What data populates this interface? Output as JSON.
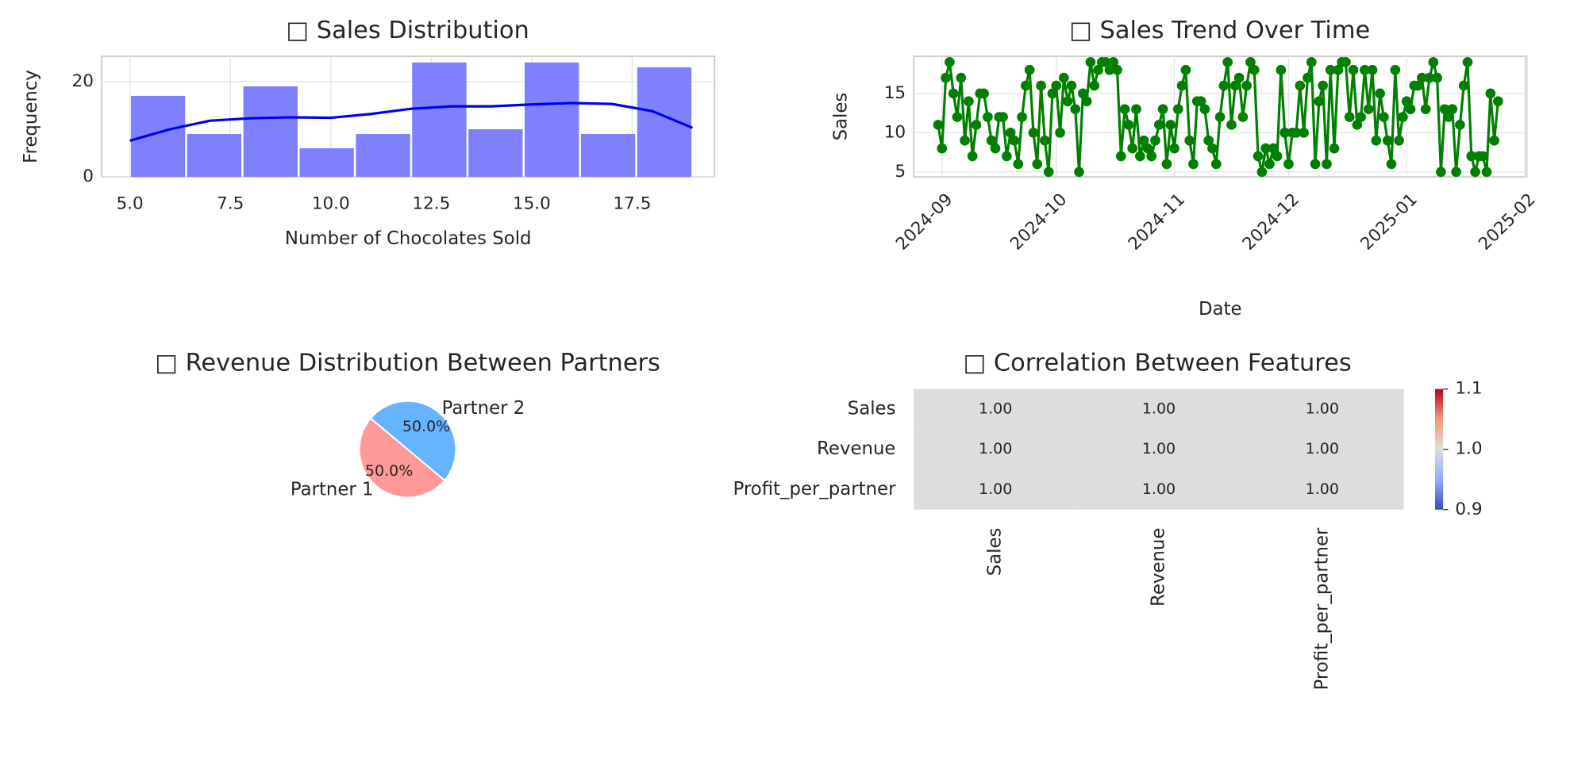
{
  "chart_data": [
    {
      "type": "histogram",
      "title": "□ Sales Distribution",
      "xlabel": "Number of Chocolates Sold",
      "ylabel": "Frequency",
      "bins": [
        5,
        6.4,
        7.8,
        9.2,
        10.6,
        12,
        13.4,
        14.8,
        16.2,
        17.6,
        19
      ],
      "values": [
        17,
        9,
        19,
        6,
        9,
        24,
        10,
        24,
        9,
        23
      ],
      "color": "#8080ff",
      "kde": {
        "x": [
          5,
          6,
          7,
          8,
          9,
          10,
          11,
          12,
          13,
          14,
          15,
          16,
          17,
          18,
          19
        ],
        "values": [
          7.6,
          10,
          11.8,
          12.3,
          12.5,
          12.4,
          13.2,
          14.3,
          14.8,
          14.8,
          15.2,
          15.5,
          15.3,
          13.8,
          10.3
        ],
        "color": "#0000ee"
      },
      "xlim": [
        4.3,
        19.55
      ],
      "ylim": [
        0,
        25.3
      ],
      "xticks": [
        {
          "value": 5,
          "label": "5.0"
        },
        7.5,
        {
          "value": 10,
          "label": "10.0"
        },
        12.5,
        {
          "value": 15,
          "label": "15.0"
        },
        17.5
      ],
      "yticks": [
        0,
        20
      ],
      "grid": true
    },
    {
      "type": "line",
      "title": "□ Sales Trend Over Time",
      "xlabel": "Date",
      "ylabel": "Sales",
      "color": "#008000",
      "values": [
        11,
        8,
        17,
        19,
        15,
        12,
        17,
        9,
        14,
        7,
        11,
        15,
        15,
        12,
        9,
        8,
        12,
        12,
        7,
        10,
        9,
        6,
        12,
        16,
        18,
        10,
        6,
        16,
        9,
        5,
        15,
        16,
        10,
        17,
        14,
        16,
        13,
        5,
        15,
        14,
        19,
        16,
        18,
        19,
        19,
        18,
        19,
        18,
        7,
        13,
        11,
        8,
        13,
        7,
        9,
        8,
        7,
        9,
        11,
        13,
        6,
        11,
        8,
        13,
        16,
        18,
        9,
        6,
        14,
        14,
        13,
        9,
        8,
        6,
        12,
        16,
        19,
        11,
        16,
        17,
        12,
        16,
        19,
        18,
        7,
        5,
        8,
        6,
        8,
        7,
        18,
        10,
        6,
        10,
        10,
        16,
        10,
        17,
        19,
        6,
        14,
        16,
        6,
        18,
        8,
        18,
        19,
        19,
        12,
        18,
        11,
        12,
        18,
        13,
        18,
        9,
        15,
        12,
        9,
        6,
        18,
        9,
        12,
        14,
        13,
        16,
        16,
        17,
        13,
        17,
        19,
        17,
        5,
        13,
        12,
        13,
        5,
        11,
        16,
        19,
        7,
        5,
        7,
        7,
        5,
        15,
        9,
        14
      ],
      "xlim": [
        -6.4,
        154.5
      ],
      "ylim": [
        4.36,
        19.74
      ],
      "xticks": [
        {
          "value": 1,
          "label": "2024-09"
        },
        {
          "value": 31,
          "label": "2024-10"
        },
        {
          "value": 62,
          "label": "2024-11"
        },
        {
          "value": 92,
          "label": "2024-12"
        },
        {
          "value": 123,
          "label": "2025-01"
        },
        {
          "value": 154,
          "label": "2025-02"
        }
      ],
      "yticks": [
        5,
        10,
        15
      ],
      "grid": true
    },
    {
      "type": "pie",
      "title": "□ Revenue Distribution Between Partners",
      "categories": [
        "Partner 1",
        "Partner 2"
      ],
      "values": [
        50,
        50
      ],
      "value_labels": [
        "50.0%",
        "50.0%"
      ],
      "colors": [
        "#ff9999",
        "#66b3ff"
      ],
      "startangle": 140
    },
    {
      "type": "heatmap",
      "title": "□ Correlation Between Features",
      "x_categories": [
        "Sales",
        "Revenue",
        "Profit_per_partner"
      ],
      "y_categories": [
        "Sales",
        "Revenue",
        "Profit_per_partner"
      ],
      "values": [
        [
          1,
          1,
          1
        ],
        [
          1,
          1,
          1
        ],
        [
          1,
          1,
          1
        ]
      ],
      "value_labels": [
        [
          "1.00",
          "1.00",
          "1.00"
        ],
        [
          "1.00",
          "1.00",
          "1.00"
        ],
        [
          "1.00",
          "1.00",
          "1.00"
        ]
      ],
      "cmap": "coolwarm",
      "clim": [
        0.9,
        1.1
      ],
      "cticks": [
        0.9,
        {
          "value": 1,
          "label": "1.0"
        },
        1.1
      ]
    }
  ]
}
